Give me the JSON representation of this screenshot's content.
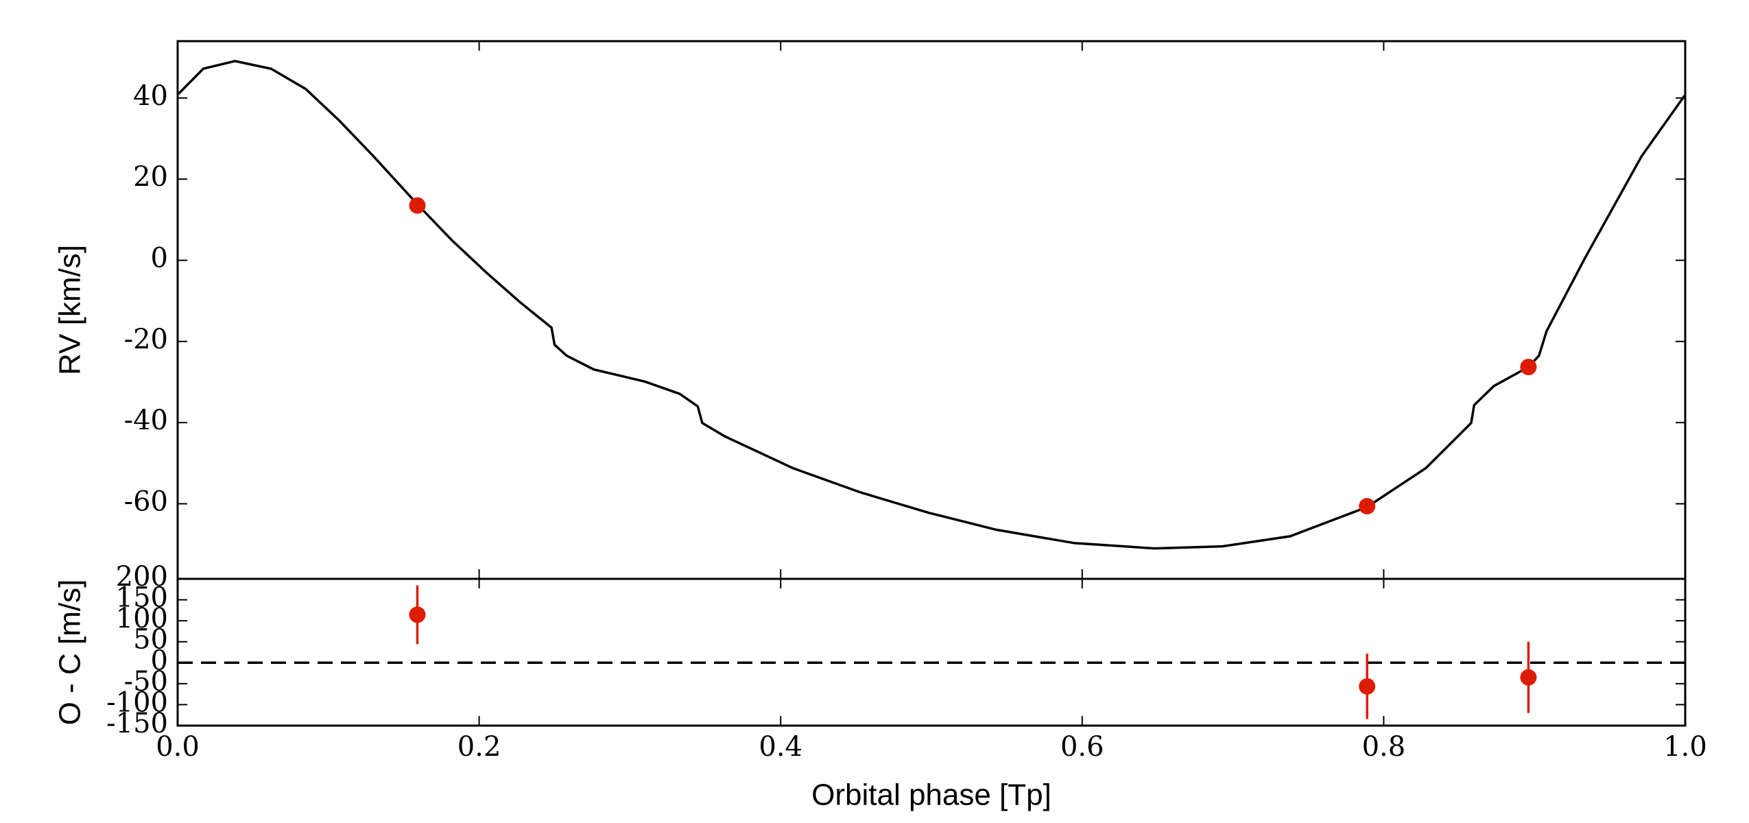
{
  "chart_data": [
    {
      "type": "line",
      "ylabel": "RV [km/s]",
      "x": [
        0.0,
        0.017,
        0.038,
        0.062,
        0.085,
        0.107,
        0.13,
        0.159,
        0.182,
        0.205,
        0.227,
        0.248,
        0.25,
        0.258,
        0.276,
        0.31,
        0.333,
        0.345,
        0.348,
        0.363,
        0.408,
        0.453,
        0.498,
        0.543,
        0.595,
        0.648,
        0.693,
        0.738,
        0.789,
        0.828,
        0.858,
        0.86,
        0.873,
        0.896,
        0.903,
        0.908,
        0.933,
        0.971,
        1.0
      ],
      "values": [
        40.8,
        47.2,
        49.1,
        47.2,
        42.2,
        34.5,
        25.6,
        13.8,
        4.9,
        -3.1,
        -10.3,
        -16.6,
        -20.8,
        -23.5,
        -26.9,
        -29.9,
        -32.9,
        -36.0,
        -40.1,
        -43.4,
        -51.2,
        -57.2,
        -62.2,
        -66.4,
        -69.7,
        -71.0,
        -70.5,
        -68.0,
        -60.8,
        -51.2,
        -40.1,
        -35.7,
        -31.0,
        -26.3,
        -23.5,
        -17.5,
        0.2,
        25.6,
        40.8
      ],
      "color": "#000000",
      "points": {
        "x": [
          0.159,
          0.789,
          0.896
        ],
        "values": [
          13.5,
          -60.6,
          -26.3
        ],
        "color": "#dd1c05"
      },
      "xlim": [
        0,
        1
      ],
      "ylim": [
        -78.5,
        54
      ],
      "yticks": [
        -60,
        -40,
        -20,
        0,
        20,
        40
      ]
    },
    {
      "type": "errorbar",
      "ylabel": "O - C [m/s]",
      "xlabel": "Orbital phase [Tp]",
      "x": [
        0.159,
        0.789,
        0.896
      ],
      "values": [
        114.5,
        -56.5,
        -35
      ],
      "errors": [
        70,
        78,
        85
      ],
      "color": "#dd1c05",
      "hline": 0,
      "xlim": [
        0,
        1
      ],
      "xticks": [
        {
          "value": 0,
          "label": "0.0"
        },
        {
          "value": 0.2,
          "label": "0.2"
        },
        {
          "value": 0.4,
          "label": "0.4"
        },
        {
          "value": 0.6,
          "label": "0.6"
        },
        {
          "value": 0.8,
          "label": "0.8"
        },
        {
          "value": 1,
          "label": "1.0"
        }
      ],
      "ylim": [
        -150,
        200
      ],
      "yticks": [
        -150,
        -100,
        -50,
        0,
        50,
        100,
        150,
        200
      ]
    }
  ]
}
